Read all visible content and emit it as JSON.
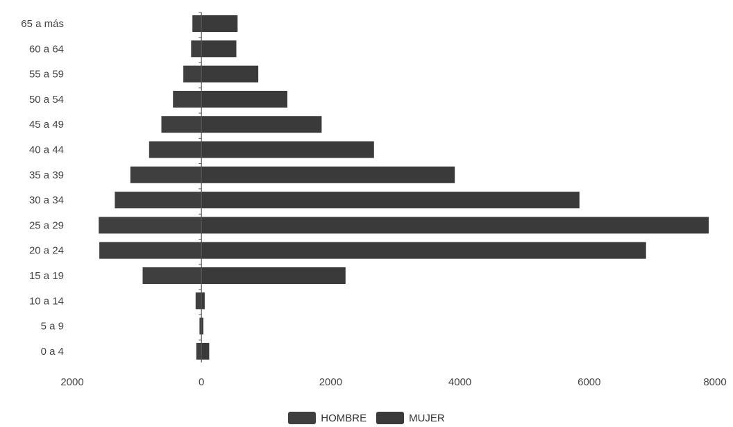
{
  "chart_data": {
    "type": "bar",
    "orientation": "horizontal",
    "stacking": "diverging",
    "categories": [
      "65 a más",
      "60 a 64",
      "55 a 59",
      "50 a 54",
      "45 a 49",
      "40 a 44",
      "35 a 39",
      "30 a 34",
      "25 a 29",
      "20 a 24",
      "15 a 19",
      "10 a 14",
      "5 a 9",
      "0 a 4"
    ],
    "series": [
      {
        "name": "HOMBRE",
        "color": "#3f3f3f",
        "values": [
          -140,
          -160,
          -280,
          -440,
          -620,
          -810,
          -1100,
          -1340,
          -1590,
          -1580,
          -910,
          -90,
          -30,
          -80
        ]
      },
      {
        "name": "MUJER",
        "color": "#3a3a3a",
        "values": [
          560,
          540,
          880,
          1330,
          1860,
          2670,
          3920,
          5850,
          7850,
          6880,
          2230,
          50,
          30,
          120
        ]
      }
    ],
    "x_ticks": [
      "2000",
      "0",
      "2000",
      "4000",
      "6000",
      "8000"
    ],
    "xlim": [
      -2000,
      8000
    ],
    "grid": false,
    "legend_position": "bottom"
  }
}
